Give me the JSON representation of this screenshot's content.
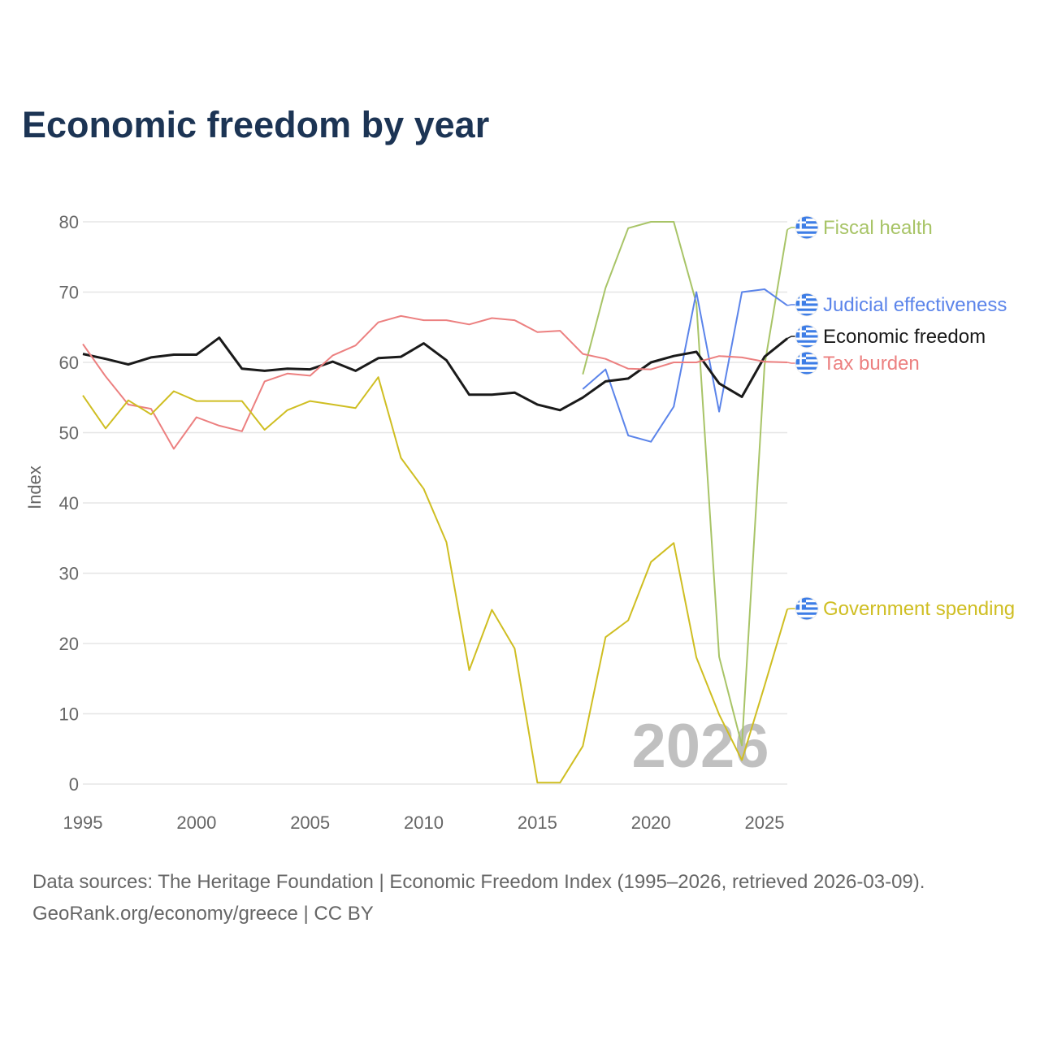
{
  "title": "Economic freedom by year",
  "source_line1": "Data sources: The Heritage Foundation | Economic Freedom Index (1995–2026, retrieved 2026-03-09).",
  "source_line2": "GeoRank.org/economy/greece | CC BY",
  "chart_data": {
    "type": "line",
    "title": "Economic freedom by year",
    "xlabel": "",
    "ylabel": "Index",
    "xlim": [
      1995,
      2026
    ],
    "ylim": [
      0,
      80
    ],
    "xticks": [
      1995,
      2000,
      2005,
      2010,
      2015,
      2020,
      2025
    ],
    "yticks": [
      0,
      10,
      20,
      30,
      40,
      50,
      60,
      70,
      80
    ],
    "grid": true,
    "legend": "right-end labels",
    "watermark_year": "2026",
    "x": [
      1995,
      1996,
      1997,
      1998,
      1999,
      2000,
      2001,
      2002,
      2003,
      2004,
      2005,
      2006,
      2007,
      2008,
      2009,
      2010,
      2011,
      2012,
      2013,
      2014,
      2015,
      2016,
      2017,
      2018,
      2019,
      2020,
      2021,
      2022,
      2023,
      2024,
      2025,
      2026
    ],
    "series": [
      {
        "name": "Fiscal health",
        "color": "#a8c467",
        "width": 2,
        "values": [
          null,
          null,
          null,
          null,
          null,
          null,
          null,
          null,
          null,
          null,
          null,
          null,
          null,
          null,
          null,
          null,
          null,
          null,
          null,
          null,
          null,
          null,
          58.3,
          70.6,
          79.1,
          80.0,
          80.0,
          68.4,
          18.1,
          5.5,
          59.6,
          78.9
        ]
      },
      {
        "name": "Judicial effectiveness",
        "color": "#5b84ea",
        "width": 2,
        "values": [
          null,
          null,
          null,
          null,
          null,
          null,
          null,
          null,
          null,
          null,
          null,
          null,
          null,
          null,
          null,
          null,
          null,
          null,
          null,
          null,
          null,
          null,
          56.2,
          59.0,
          49.6,
          48.7,
          53.7,
          70.0,
          53.0,
          70.0,
          70.4,
          68.1
        ]
      },
      {
        "name": "Economic freedom",
        "color": "#1a1a1a",
        "width": 3,
        "values": [
          61.2,
          60.5,
          59.7,
          60.7,
          61.1,
          61.1,
          63.5,
          59.1,
          58.8,
          59.1,
          59.0,
          60.1,
          58.8,
          60.6,
          60.8,
          62.7,
          60.3,
          55.4,
          55.4,
          55.7,
          54.0,
          53.2,
          55.0,
          57.3,
          57.7,
          60.0,
          60.9,
          61.5,
          57.0,
          55.1,
          60.8,
          63.4
        ]
      },
      {
        "name": "Tax burden",
        "color": "#ec8080",
        "width": 2,
        "values": [
          62.6,
          58.0,
          54.0,
          53.4,
          47.7,
          52.2,
          51.0,
          50.2,
          57.3,
          58.4,
          58.1,
          61.0,
          62.4,
          65.7,
          66.6,
          66.0,
          66.0,
          65.4,
          66.3,
          66.0,
          64.3,
          64.5,
          61.2,
          60.5,
          59.1,
          59.0,
          60.0,
          60.0,
          60.9,
          60.7,
          60.1,
          60.0
        ]
      },
      {
        "name": "Government spending",
        "color": "#cfbe22",
        "width": 2,
        "values": [
          55.3,
          50.6,
          54.6,
          52.6,
          55.9,
          54.5,
          54.5,
          54.5,
          50.4,
          53.2,
          54.5,
          54.0,
          53.5,
          57.9,
          46.4,
          42.0,
          34.4,
          16.2,
          24.8,
          19.3,
          0.2,
          0.2,
          5.4,
          20.9,
          23.3,
          31.6,
          34.3,
          18.0,
          9.9,
          3.4,
          14.0,
          24.9
        ]
      }
    ]
  }
}
